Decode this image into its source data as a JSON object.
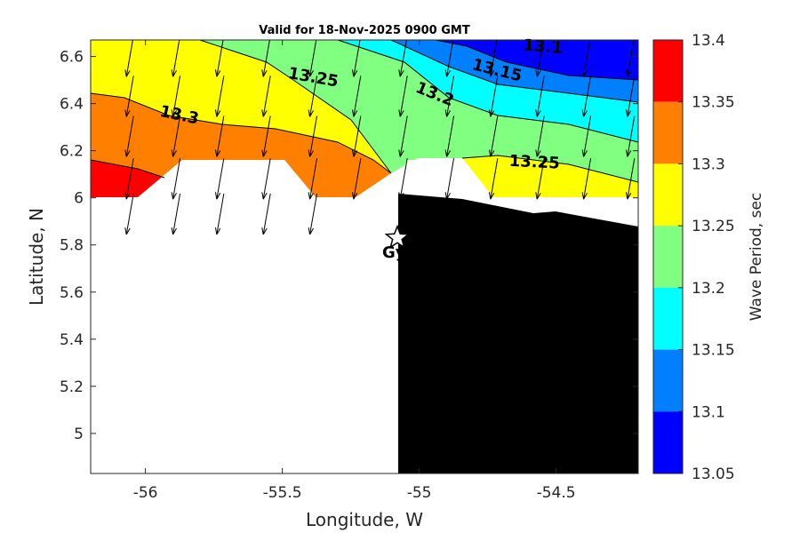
{
  "figure": {
    "title": "Valid for 18-Nov-2025 0900 GMT"
  },
  "chart_data": {
    "type": "heatmap",
    "subtype": "filled-contour map with wave-direction vectors",
    "title": "Valid for 18-Nov-2025 0900 GMT",
    "xlabel": "Longitude, W",
    "ylabel": "Latitude, N",
    "xlim": [
      -56.2,
      -54.2
    ],
    "ylim": [
      4.83,
      6.67
    ],
    "x_ticks": [
      -56,
      -55.5,
      -55,
      -54.5
    ],
    "y_ticks": [
      5,
      5.2,
      5.4,
      5.6,
      5.8,
      6,
      6.2,
      6.4,
      6.6
    ],
    "x_tick_labels": [
      "-56",
      "-55.5",
      "-55",
      "-54.5"
    ],
    "y_tick_labels": [
      "5",
      "5.2",
      "5.4",
      "5.6",
      "5.8",
      "6",
      "6.2",
      "6.4",
      "6.6"
    ],
    "colorbar": {
      "label": "Wave Period, sec",
      "range": [
        13.05,
        13.4
      ],
      "ticks": [
        "13.4",
        "13.35",
        "13.3",
        "13.25",
        "13.2",
        "13.15",
        "13.1",
        "13.05"
      ],
      "bands": [
        {
          "min": 13.35,
          "max": 13.4,
          "color": "#ff0000"
        },
        {
          "min": 13.3,
          "max": 13.35,
          "color": "#ff8000"
        },
        {
          "min": 13.25,
          "max": 13.3,
          "color": "#ffff00"
        },
        {
          "min": 13.2,
          "max": 13.25,
          "color": "#80ff80"
        },
        {
          "min": 13.15,
          "max": 13.2,
          "color": "#00ffff"
        },
        {
          "min": 13.1,
          "max": 13.15,
          "color": "#0080ff"
        },
        {
          "min": 13.05,
          "max": 13.1,
          "color": "#0000ff"
        }
      ]
    },
    "contour_labels": [
      {
        "text": "13.3",
        "lon": -55.88,
        "lat": 6.33
      },
      {
        "text": "13.25",
        "lon": -55.39,
        "lat": 6.49
      },
      {
        "text": "13.2",
        "lon": -54.95,
        "lat": 6.42
      },
      {
        "text": "13.15",
        "lon": -54.72,
        "lat": 6.52
      },
      {
        "text": "13.1",
        "lon": -54.55,
        "lat": 6.62
      },
      {
        "text": "13.25",
        "lon": -54.58,
        "lat": 6.13
      }
    ],
    "station": {
      "label": "Gyr",
      "symbol": "star",
      "lon": -55.08,
      "lat": 5.83
    },
    "land_color": "#000000",
    "grid": false
  }
}
